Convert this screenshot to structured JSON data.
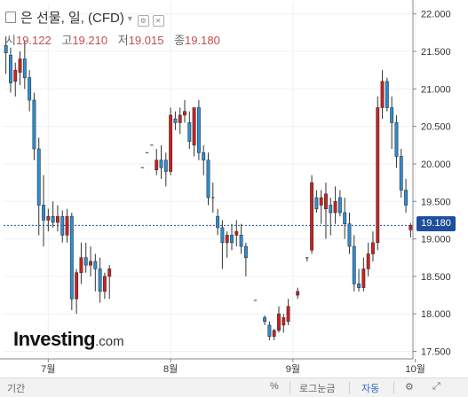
{
  "header": {
    "title": "은 선물, 일, (CFD)",
    "open_label": "시",
    "open": "19.122",
    "high_label": "고",
    "high": "19.210",
    "low_label": "저",
    "low": "19.015",
    "close_label": "종",
    "close": "19.180"
  },
  "logo": {
    "main": "Investing",
    "suffix": ".com"
  },
  "price_tag": "19.180",
  "toolbar": {
    "period": "기간",
    "percent": "%",
    "log_scale": "로그눈금",
    "auto": "자동",
    "settings_icon": "gear-icon",
    "expand_icon": "expand-icon"
  },
  "colors": {
    "up": "#d0201e",
    "down": "#2a8fd8",
    "price_line": "#1e4f9c"
  },
  "chart_data": {
    "type": "candlestick",
    "title": "은 선물, 일, (CFD)",
    "y_axis": {
      "position": "right",
      "min": 17.4,
      "max": 22.15,
      "ticks": [
        "22.000",
        "21.500",
        "21.000",
        "20.500",
        "20.000",
        "19.500",
        "19.000",
        "18.500",
        "18.000",
        "17.500"
      ]
    },
    "x_axis": {
      "ticks": [
        "7월",
        "8월",
        "9월",
        "10월"
      ],
      "tick_index": [
        9,
        35,
        61,
        87
      ]
    },
    "last_price": 19.18,
    "candles": [
      {
        "o": 21.58,
        "h": 21.7,
        "l": 21.2,
        "c": 21.48
      },
      {
        "o": 21.45,
        "h": 21.55,
        "l": 20.95,
        "c": 21.08
      },
      {
        "o": 21.1,
        "h": 21.35,
        "l": 20.9,
        "c": 21.25
      },
      {
        "o": 21.22,
        "h": 21.5,
        "l": 21.05,
        "c": 21.4
      },
      {
        "o": 21.4,
        "h": 21.65,
        "l": 21.0,
        "c": 21.15
      },
      {
        "o": 21.15,
        "h": 21.25,
        "l": 20.7,
        "c": 20.85
      },
      {
        "o": 20.85,
        "h": 20.95,
        "l": 20.05,
        "c": 20.2
      },
      {
        "o": 20.2,
        "h": 20.35,
        "l": 19.05,
        "c": 19.45
      },
      {
        "o": 19.45,
        "h": 19.85,
        "l": 18.9,
        "c": 19.25
      },
      {
        "o": 19.25,
        "h": 19.4,
        "l": 19.1,
        "c": 19.3
      },
      {
        "o": 19.3,
        "h": 19.5,
        "l": 19.15,
        "c": 19.22
      },
      {
        "o": 19.22,
        "h": 19.45,
        "l": 19.1,
        "c": 19.3
      },
      {
        "o": 19.3,
        "h": 19.38,
        "l": 18.95,
        "c": 19.05
      },
      {
        "o": 19.05,
        "h": 19.4,
        "l": 18.95,
        "c": 19.3
      },
      {
        "o": 19.3,
        "h": 19.35,
        "l": 18.05,
        "c": 18.2
      },
      {
        "o": 18.2,
        "h": 18.6,
        "l": 18.0,
        "c": 18.55
      },
      {
        "o": 18.55,
        "h": 18.95,
        "l": 18.4,
        "c": 18.75
      },
      {
        "o": 18.75,
        "h": 18.95,
        "l": 18.55,
        "c": 18.65
      },
      {
        "o": 18.65,
        "h": 18.9,
        "l": 18.5,
        "c": 18.7
      },
      {
        "o": 18.7,
        "h": 18.8,
        "l": 18.3,
        "c": 18.6
      },
      {
        "o": 18.6,
        "h": 18.75,
        "l": 18.15,
        "c": 18.3
      },
      {
        "o": 18.3,
        "h": 18.55,
        "l": 18.2,
        "c": 18.5
      },
      {
        "o": 18.5,
        "h": 18.65,
        "l": 18.2,
        "c": 18.6
      },
      {
        "o": null,
        "h": null,
        "l": null,
        "c": null
      },
      {
        "o": null,
        "h": null,
        "l": null,
        "c": null
      },
      {
        "o": null,
        "h": null,
        "l": null,
        "c": null
      },
      {
        "o": null,
        "h": null,
        "l": null,
        "c": null
      },
      {
        "o": null,
        "h": null,
        "l": null,
        "c": null
      },
      {
        "o": null,
        "h": null,
        "l": null,
        "c": null
      },
      {
        "o": 19.95,
        "h": 19.95,
        "l": 19.95,
        "c": 19.95
      },
      {
        "o": 20.15,
        "h": 20.15,
        "l": 20.15,
        "c": 20.15
      },
      {
        "o": 20.25,
        "h": 20.25,
        "l": 20.25,
        "c": 20.25
      },
      {
        "o": 19.92,
        "h": 20.2,
        "l": 19.85,
        "c": 20.05
      },
      {
        "o": 20.05,
        "h": 20.25,
        "l": 19.8,
        "c": 19.95
      },
      {
        "o": 20.05,
        "h": 20.15,
        "l": 19.7,
        "c": 19.9
      },
      {
        "o": 19.9,
        "h": 20.75,
        "l": 19.85,
        "c": 20.65
      },
      {
        "o": 20.6,
        "h": 20.7,
        "l": 20.45,
        "c": 20.55
      },
      {
        "o": 20.55,
        "h": 20.75,
        "l": 20.4,
        "c": 20.65
      },
      {
        "o": 20.65,
        "h": 20.85,
        "l": 20.55,
        "c": 20.7
      },
      {
        "o": 20.55,
        "h": 20.7,
        "l": 20.2,
        "c": 20.3
      },
      {
        "o": 20.25,
        "h": 20.75,
        "l": 20.1,
        "c": 20.75
      },
      {
        "o": 20.75,
        "h": 20.85,
        "l": 20.05,
        "c": 20.15
      },
      {
        "o": 20.15,
        "h": 20.25,
        "l": 19.85,
        "c": 20.05
      },
      {
        "o": 20.05,
        "h": 20.15,
        "l": 19.45,
        "c": 19.55
      },
      {
        "o": 19.55,
        "h": 19.75,
        "l": 19.35,
        "c": 19.55
      },
      {
        "o": 19.3,
        "h": 19.4,
        "l": 19.05,
        "c": 19.15
      },
      {
        "o": 19.15,
        "h": 19.25,
        "l": 18.6,
        "c": 18.95
      },
      {
        "o": 18.95,
        "h": 19.1,
        "l": 18.75,
        "c": 19.05
      },
      {
        "o": 19.05,
        "h": 19.2,
        "l": 18.85,
        "c": 18.95
      },
      {
        "o": 19.05,
        "h": 19.25,
        "l": 18.9,
        "c": 19.1
      },
      {
        "o": 19.05,
        "h": 19.2,
        "l": 18.8,
        "c": 18.9
      },
      {
        "o": 18.9,
        "h": 18.95,
        "l": 18.5,
        "c": 18.75
      },
      {
        "o": null,
        "h": null,
        "l": null,
        "c": null
      },
      {
        "o": 18.18,
        "h": 18.18,
        "l": 18.18,
        "c": 18.18
      },
      {
        "o": null,
        "h": null,
        "l": null,
        "c": null
      },
      {
        "o": 17.95,
        "h": 17.98,
        "l": 17.85,
        "c": 17.9
      },
      {
        "o": 17.85,
        "h": 17.9,
        "l": 17.65,
        "c": 17.7
      },
      {
        "o": 17.7,
        "h": 17.8,
        "l": 17.65,
        "c": 17.78
      },
      {
        "o": 17.78,
        "h": 18.1,
        "l": 17.75,
        "c": 18.0
      },
      {
        "o": 17.85,
        "h": 18.0,
        "l": 17.75,
        "c": 17.95
      },
      {
        "o": 17.9,
        "h": 18.2,
        "l": 17.85,
        "c": 18.1
      },
      {
        "o": null,
        "h": null,
        "l": null,
        "c": null
      },
      {
        "o": 18.25,
        "h": 18.35,
        "l": 18.2,
        "c": 18.3
      },
      {
        "o": null,
        "h": null,
        "l": null,
        "c": null
      },
      {
        "o": 18.75,
        "h": 18.75,
        "l": 18.7,
        "c": 18.75
      },
      {
        "o": 18.85,
        "h": 19.85,
        "l": 18.8,
        "c": 19.75
      },
      {
        "o": 19.55,
        "h": 19.65,
        "l": 19.35,
        "c": 19.4
      },
      {
        "o": 19.45,
        "h": 19.65,
        "l": 19.2,
        "c": 19.55
      },
      {
        "o": 19.4,
        "h": 19.75,
        "l": 19.0,
        "c": 19.6
      },
      {
        "o": 19.45,
        "h": 19.55,
        "l": 19.05,
        "c": 19.35
      },
      {
        "o": 19.35,
        "h": 19.7,
        "l": 19.2,
        "c": 19.5
      },
      {
        "o": 19.55,
        "h": 19.65,
        "l": 19.3,
        "c": 19.35
      },
      {
        "o": 19.35,
        "h": 19.55,
        "l": 19.0,
        "c": 19.2
      },
      {
        "o": 19.2,
        "h": 19.35,
        "l": 18.8,
        "c": 18.9
      },
      {
        "o": 18.9,
        "h": 19.05,
        "l": 18.3,
        "c": 18.4
      },
      {
        "o": 18.4,
        "h": 18.6,
        "l": 18.3,
        "c": 18.35
      },
      {
        "o": 18.35,
        "h": 18.75,
        "l": 18.3,
        "c": 18.6
      },
      {
        "o": 18.6,
        "h": 18.95,
        "l": 18.5,
        "c": 18.8
      },
      {
        "o": 18.8,
        "h": 19.1,
        "l": 18.7,
        "c": 18.95
      },
      {
        "o": 18.95,
        "h": 20.9,
        "l": 18.85,
        "c": 20.75
      },
      {
        "o": 20.75,
        "h": 21.25,
        "l": 20.6,
        "c": 21.1
      },
      {
        "o": 21.1,
        "h": 21.15,
        "l": 20.7,
        "c": 20.75
      },
      {
        "o": 20.75,
        "h": 20.9,
        "l": 20.2,
        "c": 20.55
      },
      {
        "o": 20.55,
        "h": 20.65,
        "l": 19.95,
        "c": 20.1
      },
      {
        "o": 20.1,
        "h": 20.2,
        "l": 19.55,
        "c": 19.65
      },
      {
        "o": 19.65,
        "h": 19.8,
        "l": 19.35,
        "c": 19.45
      },
      {
        "o": 19.12,
        "h": 19.21,
        "l": 19.02,
        "c": 19.18
      }
    ]
  }
}
